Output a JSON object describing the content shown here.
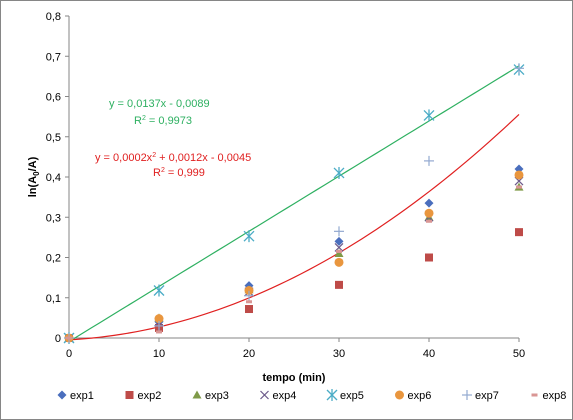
{
  "chart_data": {
    "type": "scatter",
    "xlabel": "tempo (min)",
    "ylabel_main": "ln(A",
    "ylabel_sub": "0",
    "ylabel_end": "/A)",
    "xlim": [
      0,
      50
    ],
    "ylim": [
      0,
      0.8
    ],
    "x_ticks": [
      "0",
      "10",
      "20",
      "30",
      "40",
      "50"
    ],
    "y_ticks": [
      "0",
      "0,1",
      "0,2",
      "0,3",
      "0,4",
      "0,5",
      "0,6",
      "0,7",
      "0,8"
    ],
    "grid": false,
    "legend_position": "bottom",
    "series": [
      {
        "name": "exp1",
        "marker": "diamond",
        "color": "#4a6ebd",
        "x": [
          0,
          10,
          20,
          30,
          40,
          50
        ],
        "y": [
          0,
          0.04,
          0.13,
          0.24,
          0.335,
          0.42
        ]
      },
      {
        "name": "exp2",
        "marker": "square",
        "color": "#be4b48",
        "x": [
          0,
          10,
          20,
          30,
          40,
          50
        ],
        "y": [
          0,
          0.025,
          0.072,
          0.132,
          0.2,
          0.263
        ]
      },
      {
        "name": "exp3",
        "marker": "triangle",
        "color": "#7f9a48",
        "x": [
          0,
          10,
          20,
          30,
          40,
          50
        ],
        "y": [
          0,
          0.05,
          0.12,
          0.21,
          0.3,
          0.375
        ]
      },
      {
        "name": "exp4",
        "marker": "x",
        "color": "#6c5a8a",
        "x": [
          0,
          10,
          20,
          30,
          40,
          50
        ],
        "y": [
          0,
          0.04,
          0.115,
          0.225,
          0.3,
          0.39
        ]
      },
      {
        "name": "exp5",
        "marker": "star",
        "color": "#4bacc6",
        "x": [
          0,
          10,
          20,
          30,
          40,
          50
        ],
        "y": [
          0,
          0.118,
          0.253,
          0.41,
          0.553,
          0.667
        ]
      },
      {
        "name": "exp6",
        "marker": "circle",
        "color": "#e9963e",
        "x": [
          0,
          10,
          20,
          30,
          40,
          50
        ],
        "y": [
          0,
          0.048,
          0.118,
          0.188,
          0.31,
          0.405
        ]
      },
      {
        "name": "exp7",
        "marker": "plus",
        "color": "#93a9d0",
        "x": [
          0,
          10,
          20,
          30,
          40,
          50
        ],
        "y": [
          0,
          0.03,
          0.105,
          0.265,
          0.44,
          0.67
        ]
      },
      {
        "name": "exp8",
        "marker": "dash",
        "color": "#d99694",
        "x": [
          0,
          10,
          20,
          30,
          40,
          50
        ],
        "y": [
          0,
          0.015,
          0.09,
          0.215,
          0.29,
          0.375
        ]
      }
    ],
    "trendlines": [
      {
        "kind": "linear",
        "color": "#2eb061",
        "a": 0.0137,
        "b": -0.0089,
        "x_range": [
          0,
          50
        ],
        "equation": "y = 0,0137x - 0,0089",
        "r2_label": "R",
        "r2_value": " = 0,9973"
      },
      {
        "kind": "poly2",
        "color": "#e02020",
        "a": 0.0002,
        "b": 0.0012,
        "c": -0.0045,
        "x_range": [
          0,
          50
        ],
        "equation_a": "y = 0,0002x",
        "equation_b": " + 0,0012x - 0,0045",
        "r2_label": "R",
        "r2_value": " = 0,999"
      }
    ]
  }
}
